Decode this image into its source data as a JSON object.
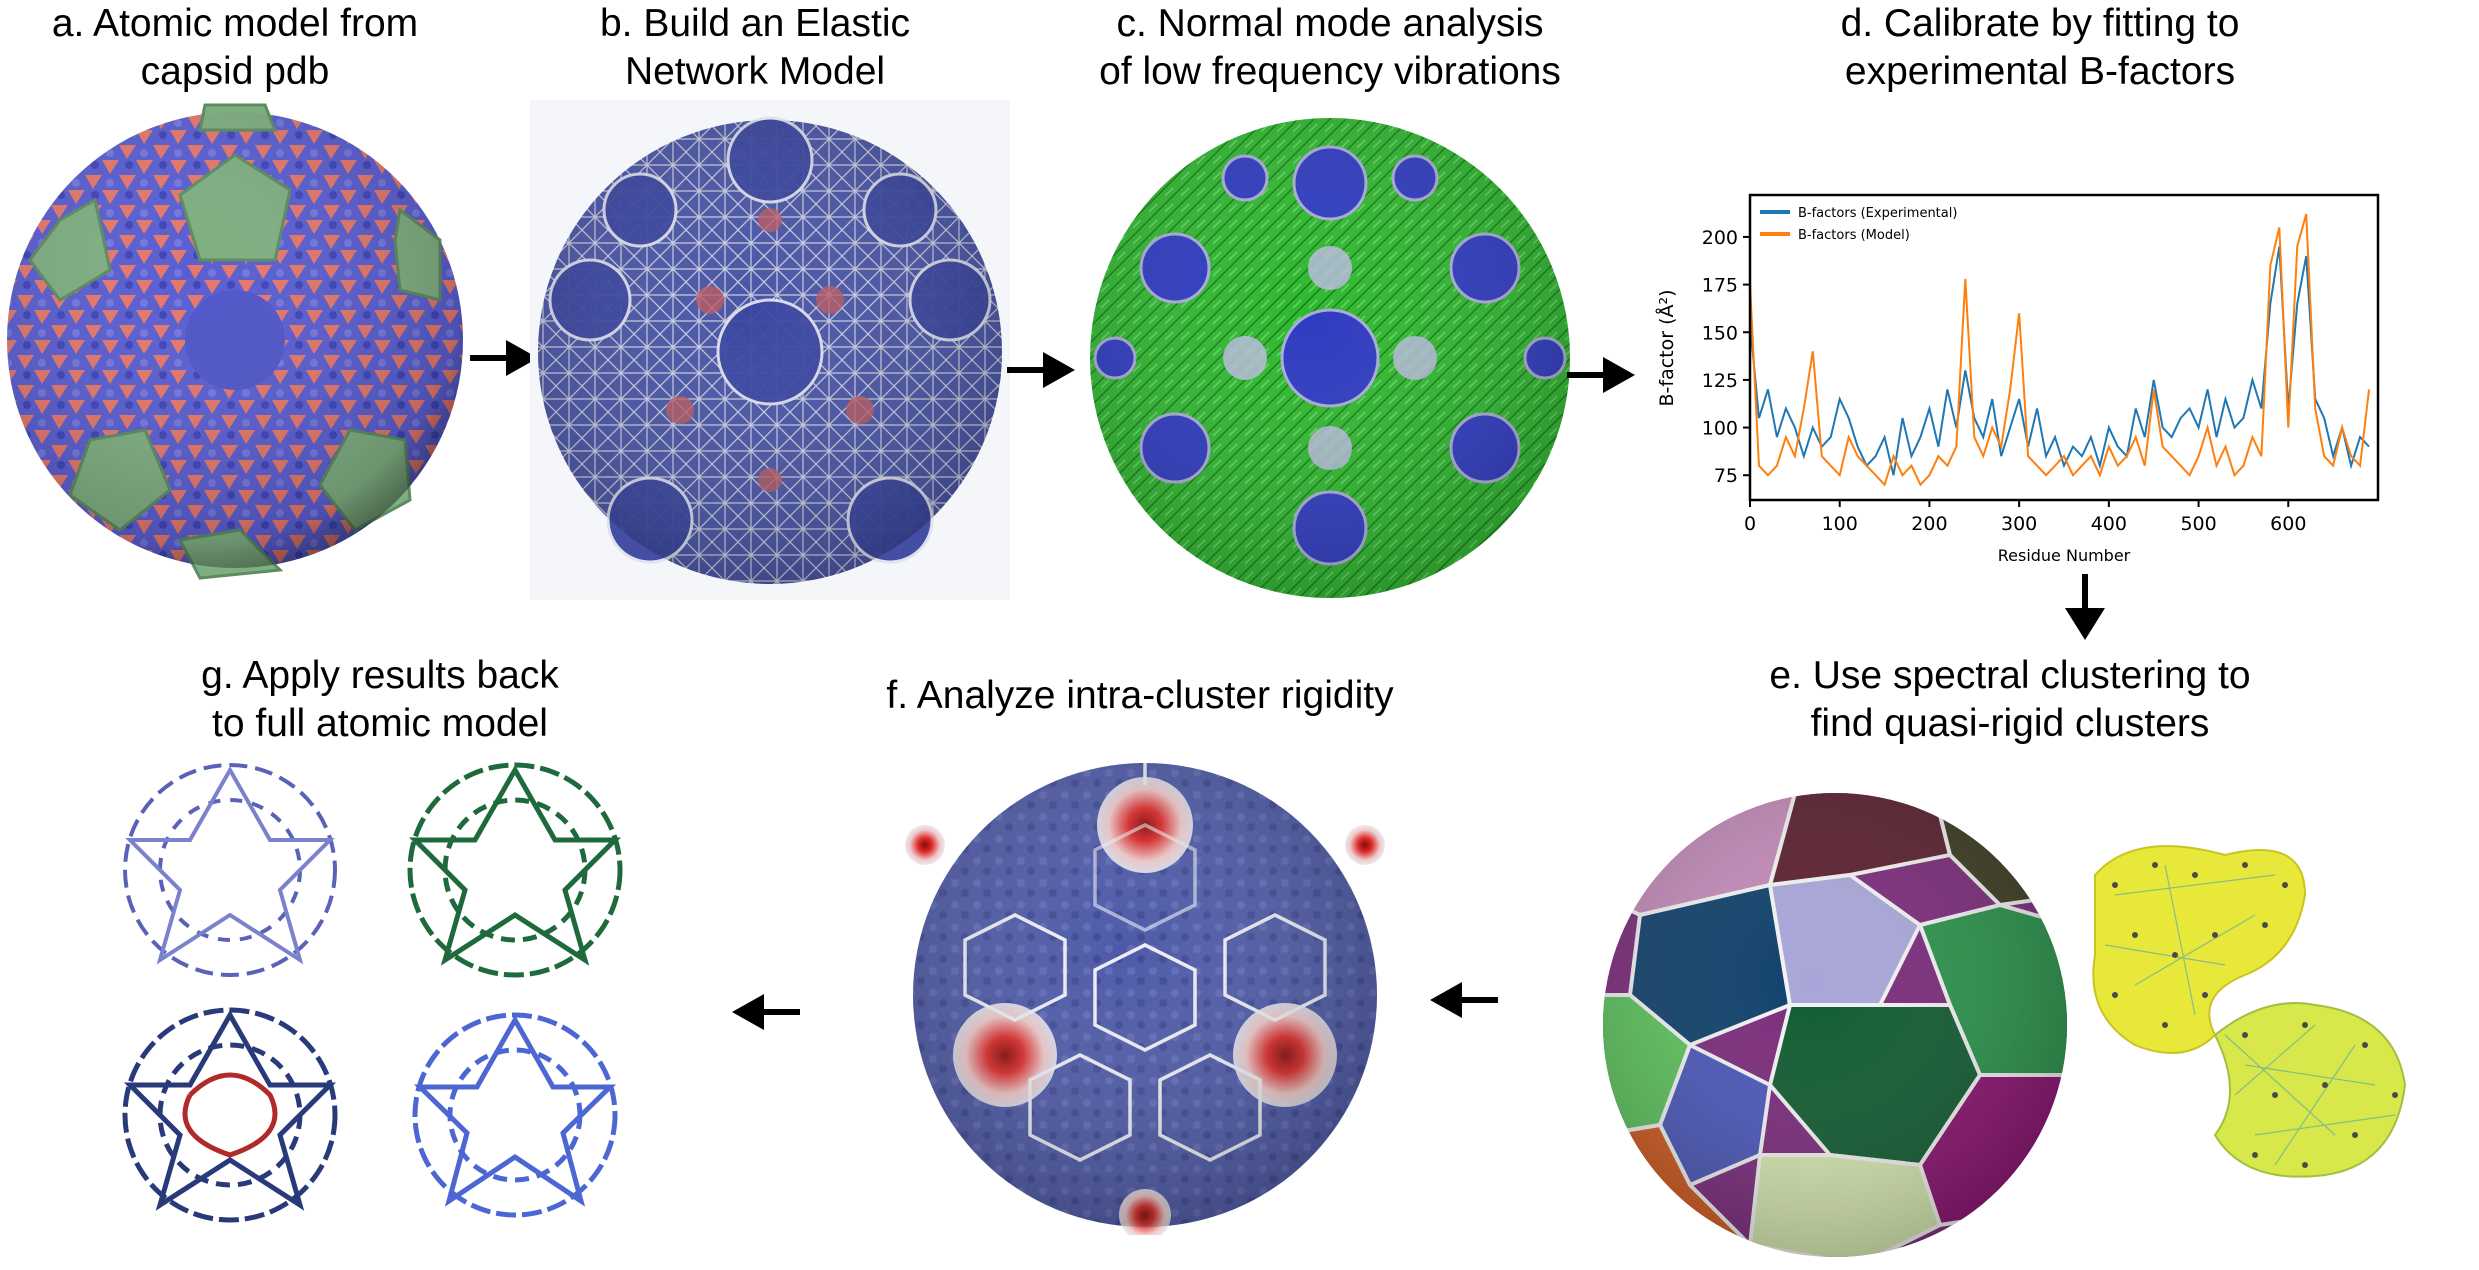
{
  "panels": {
    "a": {
      "line1": "a. Atomic model from",
      "line2": "capsid pdb"
    },
    "b": {
      "line1": "b. Build an Elastic",
      "line2": "Network Model"
    },
    "c": {
      "line1": "c. Normal mode analysis",
      "line2": "of low frequency vibrations"
    },
    "d": {
      "line1": "d. Calibrate by fitting to",
      "line2": "experimental B-factors"
    },
    "e": {
      "line1": "e. Use spectral clustering to",
      "line2": "find quasi-rigid clusters"
    },
    "f": {
      "line1": "f. Analyze intra-cluster rigidity"
    },
    "g": {
      "line1": "g. Apply results back",
      "line2": "to full atomic model"
    }
  },
  "chart_data": {
    "type": "line",
    "title": "",
    "xlabel": "Residue Number",
    "ylabel": "B-factor (Å²)",
    "xlim": [
      0,
      700
    ],
    "ylim": [
      62,
      222
    ],
    "xticks": [
      0,
      100,
      200,
      300,
      400,
      500,
      600
    ],
    "yticks": [
      75,
      100,
      125,
      150,
      175,
      200
    ],
    "legend_position": "top-left",
    "series": [
      {
        "name": "B-factors (Experimental)",
        "color": "#1f77b4",
        "x": [
          0,
          10,
          20,
          30,
          40,
          50,
          60,
          70,
          80,
          90,
          100,
          110,
          120,
          130,
          140,
          150,
          160,
          170,
          180,
          190,
          200,
          210,
          220,
          230,
          240,
          250,
          260,
          270,
          280,
          290,
          300,
          310,
          320,
          330,
          340,
          350,
          360,
          370,
          380,
          390,
          400,
          410,
          420,
          430,
          440,
          450,
          460,
          470,
          480,
          490,
          500,
          510,
          520,
          530,
          540,
          550,
          560,
          570,
          580,
          590,
          600,
          610,
          620,
          630,
          640,
          650,
          660,
          670,
          680,
          690
        ],
        "y": [
          155,
          105,
          120,
          95,
          110,
          100,
          85,
          100,
          90,
          95,
          115,
          105,
          90,
          80,
          85,
          95,
          75,
          105,
          85,
          95,
          110,
          90,
          120,
          100,
          130,
          105,
          95,
          115,
          85,
          100,
          115,
          90,
          110,
          85,
          95,
          80,
          90,
          85,
          95,
          80,
          100,
          90,
          85,
          110,
          95,
          125,
          100,
          95,
          105,
          110,
          100,
          120,
          95,
          115,
          100,
          105,
          125,
          110,
          165,
          195,
          110,
          165,
          190,
          115,
          105,
          85,
          100,
          80,
          95,
          90
        ]
      },
      {
        "name": "B-factors (Model)",
        "color": "#ff7f0e",
        "x": [
          0,
          10,
          20,
          30,
          40,
          50,
          60,
          70,
          80,
          90,
          100,
          110,
          120,
          130,
          140,
          150,
          160,
          170,
          180,
          190,
          200,
          210,
          220,
          230,
          240,
          250,
          260,
          270,
          280,
          290,
          300,
          310,
          320,
          330,
          340,
          350,
          360,
          370,
          380,
          390,
          400,
          410,
          420,
          430,
          440,
          450,
          460,
          470,
          480,
          490,
          500,
          510,
          520,
          530,
          540,
          550,
          560,
          570,
          580,
          590,
          600,
          610,
          620,
          630,
          640,
          650,
          660,
          670,
          680,
          690
        ],
        "y": [
          175,
          80,
          75,
          80,
          95,
          85,
          110,
          140,
          85,
          80,
          75,
          95,
          85,
          80,
          75,
          70,
          85,
          75,
          80,
          70,
          75,
          85,
          80,
          90,
          178,
          95,
          85,
          100,
          90,
          120,
          160,
          85,
          80,
          75,
          80,
          85,
          75,
          80,
          85,
          75,
          90,
          80,
          85,
          95,
          80,
          120,
          90,
          85,
          80,
          75,
          85,
          100,
          80,
          90,
          75,
          80,
          95,
          85,
          185,
          205,
          100,
          195,
          212,
          110,
          85,
          80,
          100,
          85,
          80,
          120
        ]
      }
    ]
  },
  "colors": {
    "capsid_blue": "#4f56c8",
    "capsid_red": "#e4776a",
    "capsid_green": "#7fae82",
    "enm_blue": "#4a56a6",
    "nma_green": "#2fb82f",
    "rigidity_red": "#dd2b2b",
    "cartoon_green": "#1e6a3c",
    "cartoon_navy": "#283a7a",
    "cartoon_blue": "#4c66d4",
    "graph_yellow": "#e8e83a"
  }
}
